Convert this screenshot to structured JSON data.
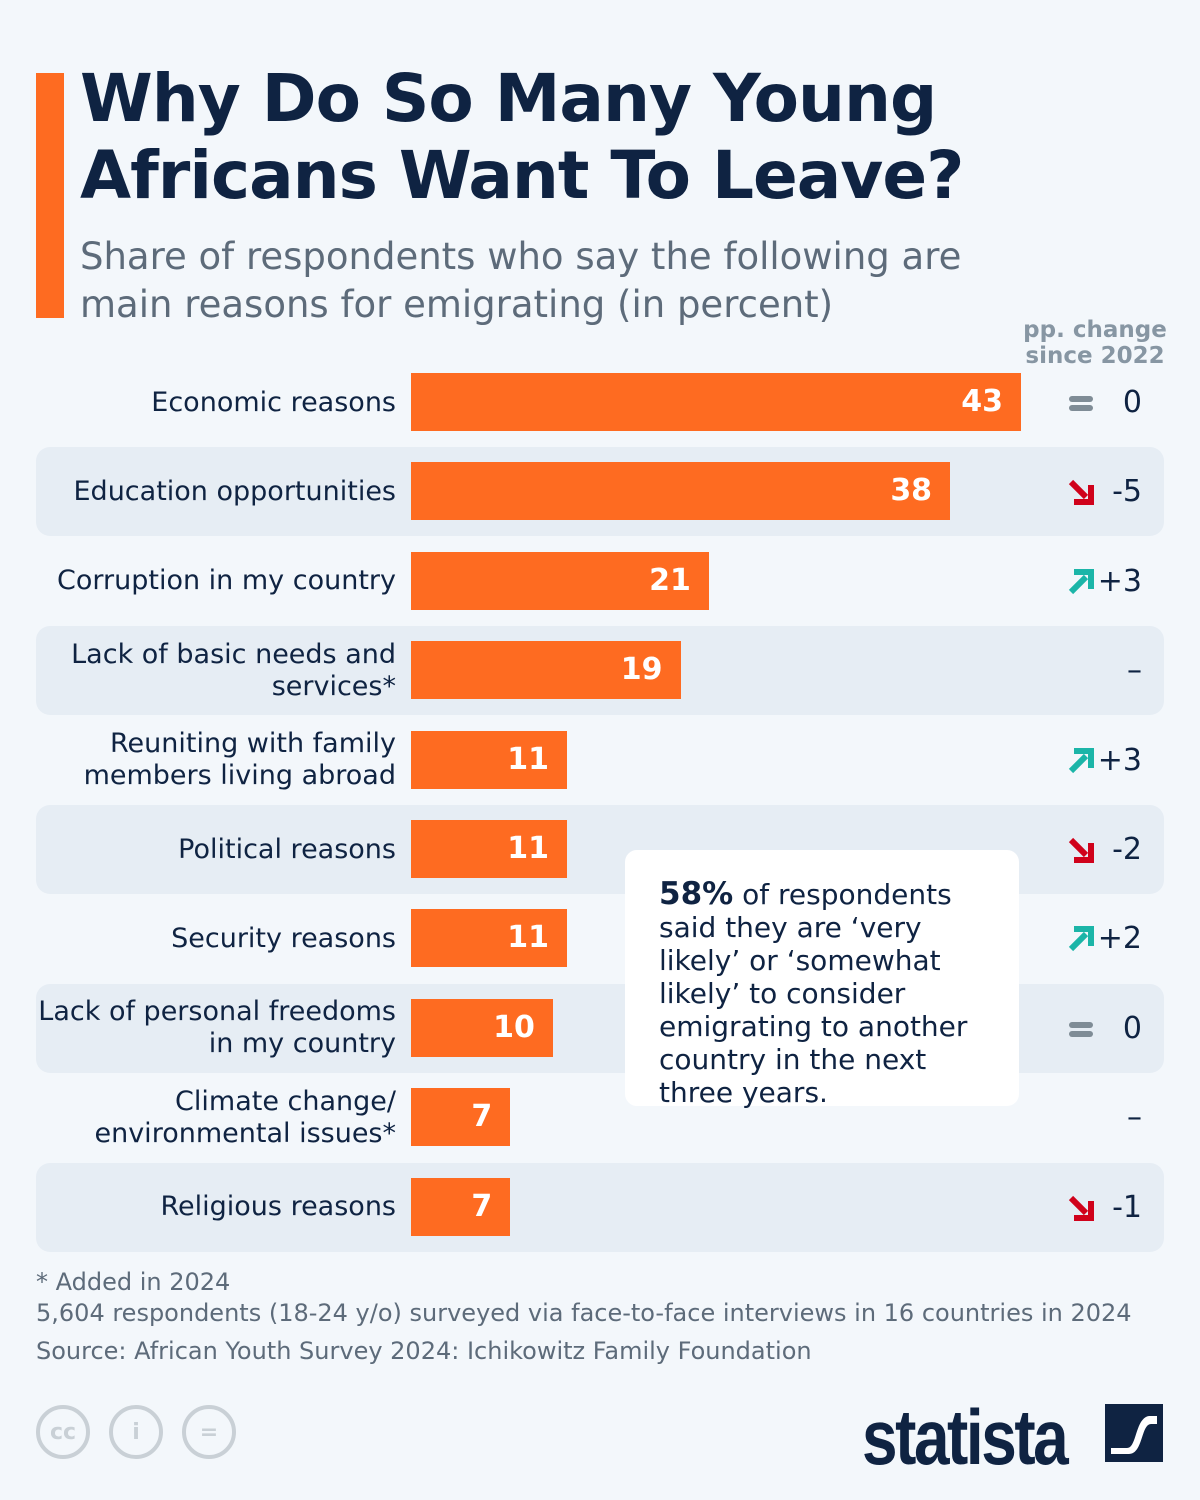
{
  "title": "Why Do So Many Young Africans Want To Leave?",
  "subtitle": "Share of respondents who say the following are main reasons for emigrating (in percent)",
  "change_header": "pp. change since 2022",
  "colors": {
    "bar": "#fe6b21",
    "title": "#0f2342",
    "up": "#1bb5a8",
    "down": "#d0021b",
    "equal": "#7f8c96"
  },
  "chart_data": {
    "type": "bar",
    "orientation": "horizontal",
    "categories": [
      "Economic reasons",
      "Education opportunities",
      "Corruption in my country",
      "Lack of basic needs and services*",
      "Reuniting with family members living abroad",
      "Political reasons",
      "Security reasons",
      "Lack of personal freedoms in my country",
      "Climate change/ environmental issues*",
      "Religious reasons"
    ],
    "values": [
      43,
      38,
      21,
      19,
      11,
      11,
      11,
      10,
      7,
      7
    ],
    "changes": [
      "0",
      "-5",
      "+3",
      "–",
      "+3",
      "-2",
      "+2",
      "0",
      "–",
      "-1"
    ],
    "change_icons": [
      "equal-icon",
      "arrow-down-icon",
      "arrow-up-icon",
      "",
      "arrow-up-icon",
      "arrow-down-icon",
      "arrow-up-icon",
      "equal-icon",
      "",
      "arrow-down-icon"
    ],
    "xlim": [
      0,
      43
    ]
  },
  "callout": {
    "highlight": "58%",
    "text": " of respondents said they are ‘very likely’ or ‘somewhat likely’ to consider emigrating to another country in the next three years."
  },
  "footnotes": {
    "added": "* Added in 2024",
    "survey": "5,604 respondents (18-24 y/o) surveyed via face-to-face interviews in 16 countries in 2024",
    "source": "Source: African Youth Survey 2024: Ichikowitz Family Foundation"
  },
  "logo": "statista"
}
